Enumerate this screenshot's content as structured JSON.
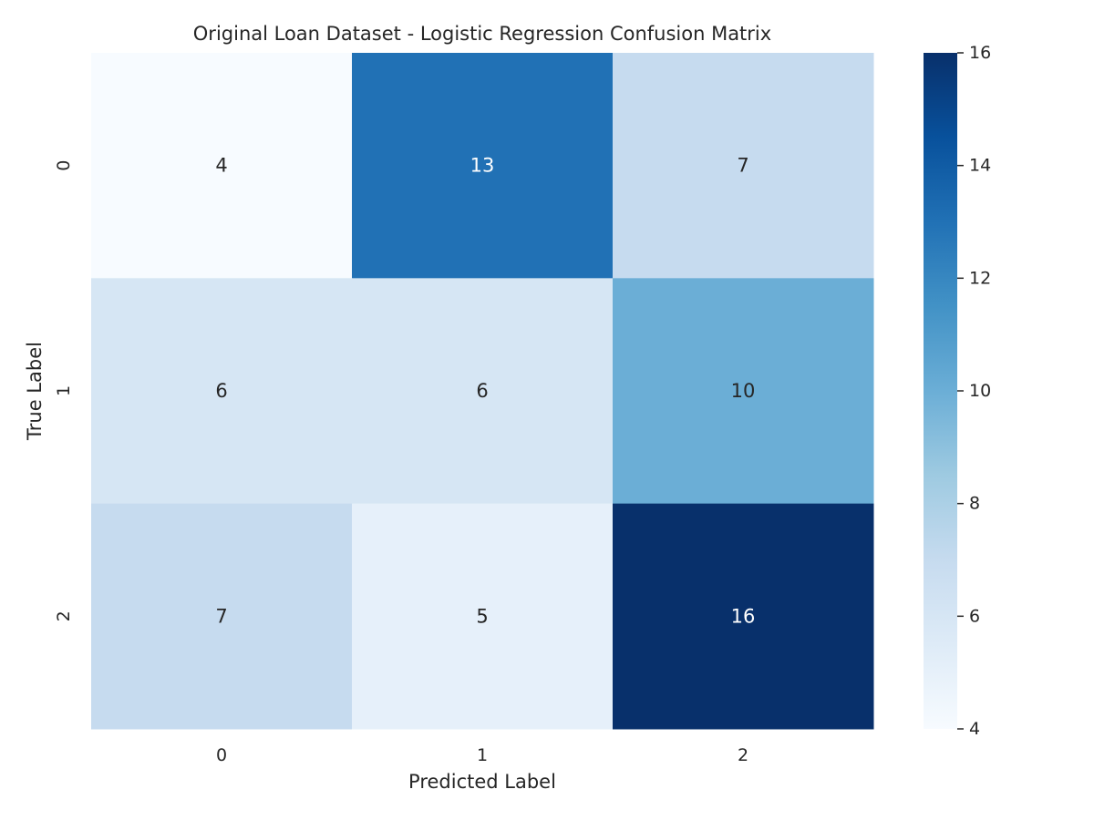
{
  "chart_data": {
    "type": "heatmap",
    "title": "Original Loan Dataset - Logistic Regression Confusion Matrix",
    "xlabel": "Predicted Label",
    "ylabel": "True Label",
    "x_categories": [
      "0",
      "1",
      "2"
    ],
    "y_categories": [
      "0",
      "1",
      "2"
    ],
    "values": [
      [
        4,
        13,
        7
      ],
      [
        6,
        6,
        10
      ],
      [
        7,
        5,
        16
      ]
    ],
    "colormap": "Blues",
    "colorbar": {
      "range": [
        4,
        16
      ],
      "ticks": [
        "4",
        "6",
        "8",
        "10",
        "12",
        "14",
        "16"
      ]
    },
    "colors": {
      "low": "#f7fbff",
      "high": "#08306b",
      "text_dark": "#262626",
      "text_light": "#ffffff"
    }
  }
}
